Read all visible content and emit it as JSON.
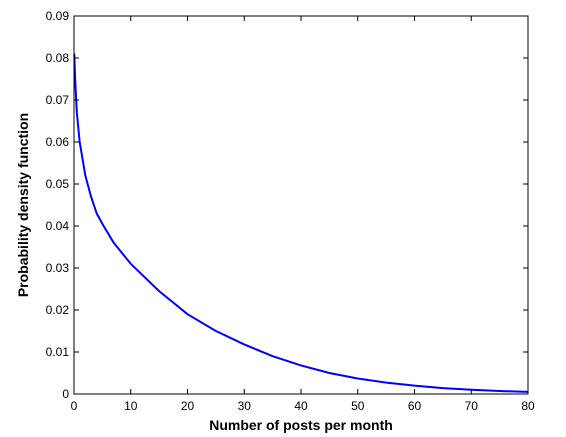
{
  "chart_data": {
    "type": "line",
    "title": "",
    "xlabel": "Number of posts per month",
    "ylabel": "Probability density function",
    "xlim": [
      0,
      80
    ],
    "ylim": [
      0,
      0.09
    ],
    "xticks": [
      0,
      10,
      20,
      30,
      40,
      50,
      60,
      70,
      80
    ],
    "xtick_labels": [
      "0",
      "10",
      "20",
      "30",
      "40",
      "50",
      "60",
      "70",
      "80"
    ],
    "yticks": [
      0,
      0.01,
      0.02,
      0.03,
      0.04,
      0.05,
      0.06,
      0.07,
      0.08,
      0.09
    ],
    "ytick_labels": [
      "0",
      "0.01",
      "0.02",
      "0.03",
      "0.04",
      "0.05",
      "0.06",
      "0.07",
      "0.08",
      "0.09"
    ],
    "grid": false,
    "legend": "none",
    "series": [
      {
        "color": "#0000ff",
        "x": [
          0.05,
          0.2,
          0.5,
          1,
          2,
          3,
          4,
          5,
          7,
          10,
          15,
          20,
          25,
          30,
          35,
          40,
          45,
          50,
          55,
          60,
          65,
          70,
          75,
          80
        ],
        "y": [
          0.081,
          0.075,
          0.067,
          0.06,
          0.052,
          0.047,
          0.043,
          0.0405,
          0.036,
          0.031,
          0.0245,
          0.019,
          0.015,
          0.0118,
          0.009,
          0.0068,
          0.005,
          0.0037,
          0.0027,
          0.002,
          0.0014,
          0.001,
          0.0007,
          0.0005
        ]
      }
    ]
  }
}
